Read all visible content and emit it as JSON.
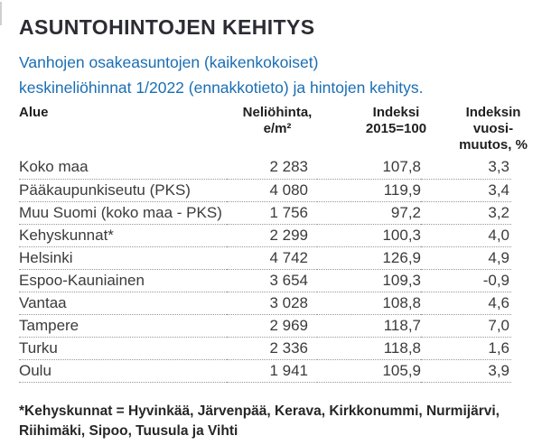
{
  "colors": {
    "accent_blue": "#1a6eb4",
    "title_text": "#2c2c34",
    "body_text": "#3b3b3b",
    "divider_dotted": "#979797"
  },
  "header": {
    "title": "ASUNTOHINTOJEN KEHITYS",
    "subtitle": "Vanhojen osakeasuntojen (kaikenkokoiset)\nkeskineliöhinnat 1/2022 (ennakkotieto) ja hintojen kehitys."
  },
  "table": {
    "columns": [
      {
        "label": "Alue"
      },
      {
        "label": "Neliöhinta,\ne/m²"
      },
      {
        "label": "Indeksi\n2015=100"
      },
      {
        "label": "Indeksin\nvuosi-\nmuutos, %"
      }
    ],
    "rows": [
      {
        "area": "Koko maa",
        "price": "2 283",
        "index": "107,8",
        "change": "3,3"
      },
      {
        "area": "Pääkaupunkiseutu (PKS)",
        "price": "4 080",
        "index": "119,9",
        "change": "3,4"
      },
      {
        "area": "Muu Suomi (koko maa - PKS)",
        "price": "1 756",
        "index": "97,2",
        "change": "3,2"
      },
      {
        "area": "Kehyskunnat*",
        "price": "2 299",
        "index": "100,3",
        "change": "4,0"
      },
      {
        "area": "Helsinki",
        "price": "4 742",
        "index": "126,9",
        "change": "4,9"
      },
      {
        "area": "Espoo-Kauniainen",
        "price": "3 654",
        "index": "109,3",
        "change": "-0,9"
      },
      {
        "area": "Vantaa",
        "price": "3 028",
        "index": "108,8",
        "change": "4,6"
      },
      {
        "area": "Tampere",
        "price": "2 969",
        "index": "118,7",
        "change": "7,0"
      },
      {
        "area": "Turku",
        "price": "2 336",
        "index": "118,8",
        "change": "1,6"
      },
      {
        "area": "Oulu",
        "price": "1 941",
        "index": "105,9",
        "change": "3,9"
      }
    ]
  },
  "footnote": "*Kehyskunnat = Hyvinkää, Järvenpää, Kerava, Kirkkonummi, Nurmijärvi,\nRiihimäki, Sipoo, Tuusula ja Vihti",
  "chart_data": {
    "type": "table",
    "title": "ASUNTOHINTOJEN KEHITYS",
    "subtitle": "Vanhojen osakeasuntojen (kaikenkokoiset) keskineliöhinnat 1/2022 (ennakkotieto) ja hintojen kehitys.",
    "columns": [
      "Alue",
      "Neliöhinta, e/m²",
      "Indeksi 2015=100",
      "Indeksin vuosimuutos, %"
    ],
    "rows": [
      [
        "Koko maa",
        2283,
        107.8,
        3.3
      ],
      [
        "Pääkaupunkiseutu (PKS)",
        4080,
        119.9,
        3.4
      ],
      [
        "Muu Suomi (koko maa - PKS)",
        1756,
        97.2,
        3.2
      ],
      [
        "Kehyskunnat*",
        2299,
        100.3,
        4.0
      ],
      [
        "Helsinki",
        4742,
        126.9,
        4.9
      ],
      [
        "Espoo-Kauniainen",
        3654,
        109.3,
        -0.9
      ],
      [
        "Vantaa",
        3028,
        108.8,
        4.6
      ],
      [
        "Tampere",
        2969,
        118.7,
        7.0
      ],
      [
        "Turku",
        2336,
        118.8,
        1.6
      ],
      [
        "Oulu",
        1941,
        105.9,
        3.9
      ]
    ],
    "footnote": "*Kehyskunnat = Hyvinkää, Järvenpää, Kerava, Kirkkonummi, Nurmijärvi, Riihimäki, Sipoo, Tuusula ja Vihti"
  }
}
